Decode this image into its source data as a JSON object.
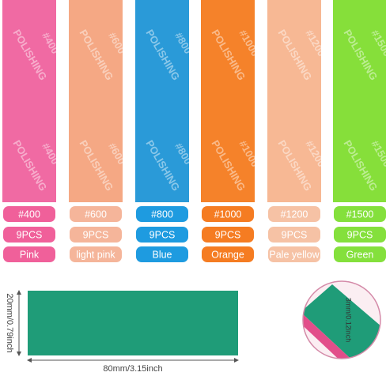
{
  "products": [
    {
      "grit": "#400",
      "count": "9PCS",
      "color_name": "Pink"
    },
    {
      "grit": "#600",
      "count": "9PCS",
      "color_name": "light pink"
    },
    {
      "grit": "#800",
      "count": "9PCS",
      "color_name": "Blue"
    },
    {
      "grit": "#1000",
      "count": "9PCS",
      "color_name": "Orange"
    },
    {
      "grit": "#1200",
      "count": "9PCS",
      "color_name": "Pale yellow"
    },
    {
      "grit": "#1500",
      "count": "9PCS",
      "color_name": "Green"
    }
  ],
  "stamp": "POLISHING",
  "dimensions": {
    "height": "20mm/0.79inch",
    "length": "80mm/3.15inch",
    "thickness": "3mm/0.12inch"
  }
}
